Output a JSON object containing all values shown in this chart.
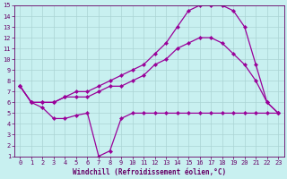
{
  "xlabel": "Windchill (Refroidissement éolien,°C)",
  "background_color": "#c8f0f0",
  "grid_color": "#aad4d4",
  "line_color": "#990099",
  "spine_color": "#660066",
  "tick_color": "#660066",
  "xlim": [
    -0.5,
    23.5
  ],
  "ylim": [
    1,
    15
  ],
  "xticks": [
    0,
    1,
    2,
    3,
    4,
    5,
    6,
    7,
    8,
    9,
    10,
    11,
    12,
    13,
    14,
    15,
    16,
    17,
    18,
    19,
    20,
    21,
    22,
    23
  ],
  "yticks": [
    1,
    2,
    3,
    4,
    5,
    6,
    7,
    8,
    9,
    10,
    11,
    12,
    13,
    14,
    15
  ],
  "curve1_x": [
    0,
    1,
    2,
    3,
    4,
    5,
    6,
    7,
    8,
    9,
    10,
    11,
    12,
    13,
    14,
    15,
    16,
    17,
    18,
    19,
    20,
    21,
    22,
    23
  ],
  "curve1_y": [
    7.5,
    6.0,
    5.5,
    4.5,
    4.5,
    4.8,
    5.0,
    1.0,
    1.5,
    4.5,
    5.0,
    5.0,
    5.0,
    5.0,
    5.0,
    5.0,
    5.0,
    5.0,
    5.0,
    5.0,
    5.0,
    5.0,
    5.0,
    5.0
  ],
  "curve2_x": [
    0,
    1,
    2,
    3,
    4,
    5,
    6,
    7,
    8,
    9,
    10,
    11,
    12,
    13,
    14,
    15,
    16,
    17,
    18,
    19,
    20,
    21,
    22,
    23
  ],
  "curve2_y": [
    7.5,
    6.0,
    6.0,
    6.0,
    6.5,
    7.0,
    7.0,
    7.5,
    8.0,
    8.5,
    9.0,
    9.5,
    10.5,
    11.5,
    13.0,
    14.5,
    15.0,
    15.0,
    15.0,
    14.5,
    13.0,
    9.5,
    6.0,
    5.0
  ],
  "curve3_x": [
    0,
    1,
    2,
    3,
    4,
    5,
    6,
    7,
    8,
    9,
    10,
    11,
    12,
    13,
    14,
    15,
    16,
    17,
    18,
    19,
    20,
    21,
    22,
    23
  ],
  "curve3_y": [
    7.5,
    6.0,
    6.0,
    6.0,
    6.5,
    6.5,
    6.5,
    7.0,
    7.5,
    7.5,
    8.0,
    8.5,
    9.5,
    10.0,
    11.0,
    11.5,
    12.0,
    12.0,
    11.5,
    10.5,
    9.5,
    8.0,
    6.0,
    5.0
  ],
  "xlabel_fontsize": 5.5,
  "tick_fontsize": 5.0,
  "linewidth": 0.9,
  "markersize": 2.2
}
